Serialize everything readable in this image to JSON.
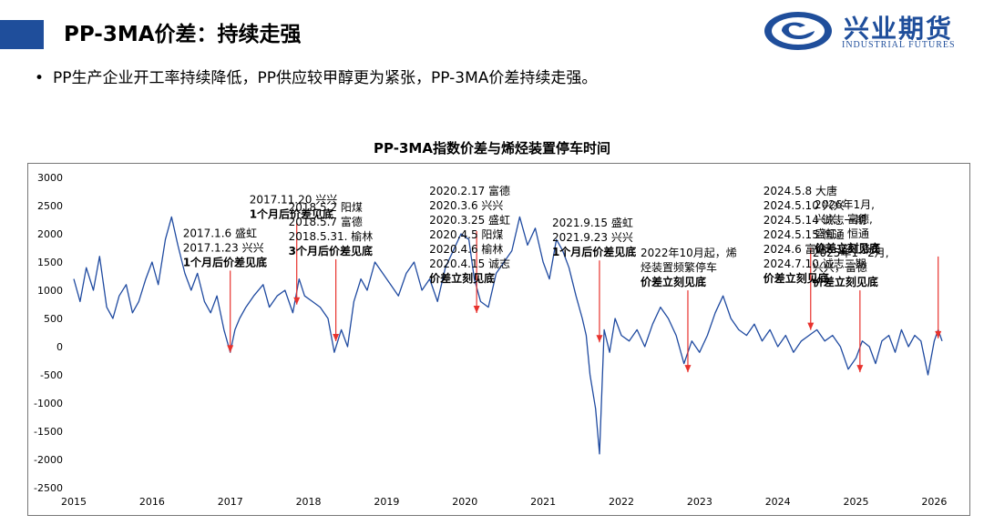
{
  "header": {
    "title": "PP-3MA价差：持续走强"
  },
  "logo": {
    "name_cn": "兴业期货",
    "name_en": "INDUSTRIAL FUTURES"
  },
  "bullet": {
    "text": "PP生产企业开工率持续降低，PP供应较甲醇更为紧张，PP-3MA价差持续走强。"
  },
  "colors": {
    "accent": "#1f4e9b",
    "series": "#1f4aa0",
    "arrow": "#e8322d"
  },
  "chart_data": {
    "type": "line",
    "title": "PP-3MA指数价差与烯烃装置停车时间",
    "xlabel": "",
    "ylabel": "",
    "ylim": [
      -2500,
      3000
    ],
    "xlim": [
      2015,
      2026.1
    ],
    "yticks": [
      3000,
      2500,
      2000,
      1500,
      1000,
      500,
      0,
      -500,
      -1000,
      -1500,
      -2000,
      -2500
    ],
    "xticks": [
      "2015",
      "2016",
      "2017",
      "2018",
      "2019",
      "2020",
      "2021",
      "2022",
      "2023",
      "2024",
      "2025",
      "2026"
    ],
    "grid": false,
    "legend": "none",
    "series": [
      {
        "x": [
          2015.0,
          2015.08,
          2015.16,
          2015.25,
          2015.33,
          2015.42,
          2015.5,
          2015.58,
          2015.67,
          2015.75,
          2015.83,
          2015.92,
          2016.0,
          2016.08,
          2016.17,
          2016.25,
          2016.33,
          2016.42,
          2016.5,
          2016.58,
          2016.67,
          2016.75,
          2016.83,
          2016.92,
          2017.0,
          2017.06,
          2017.12,
          2017.2,
          2017.3,
          2017.42,
          2017.5,
          2017.6,
          2017.7,
          2017.8,
          2017.88,
          2017.95,
          2018.05,
          2018.15,
          2018.25,
          2018.33,
          2018.42,
          2018.5,
          2018.58,
          2018.67,
          2018.75,
          2018.85,
          2018.95,
          2019.05,
          2019.15,
          2019.25,
          2019.35,
          2019.45,
          2019.55,
          2019.65,
          2019.75,
          2019.85,
          2019.95,
          2020.05,
          2020.12,
          2020.2,
          2020.3,
          2020.4,
          2020.5,
          2020.6,
          2020.7,
          2020.8,
          2020.9,
          2021.0,
          2021.08,
          2021.17,
          2021.25,
          2021.33,
          2021.42,
          2021.5,
          2021.55,
          2021.6,
          2021.67,
          2021.72,
          2021.78,
          2021.85,
          2021.92,
          2022.0,
          2022.1,
          2022.2,
          2022.3,
          2022.4,
          2022.5,
          2022.6,
          2022.7,
          2022.8,
          2022.9,
          2023.0,
          2023.1,
          2023.2,
          2023.3,
          2023.4,
          2023.5,
          2023.6,
          2023.7,
          2023.8,
          2023.9,
          2024.0,
          2024.1,
          2024.2,
          2024.3,
          2024.4,
          2024.5,
          2024.6,
          2024.7,
          2024.8,
          2024.9,
          2025.0,
          2025.08,
          2025.17,
          2025.25,
          2025.33,
          2025.42,
          2025.5,
          2025.58,
          2025.67,
          2025.75,
          2025.83,
          2025.92,
          2026.0,
          2026.05,
          2026.1
        ],
        "y": [
          1200,
          800,
          1400,
          1000,
          1600,
          700,
          500,
          900,
          1100,
          600,
          800,
          1200,
          1500,
          1100,
          1900,
          2300,
          1800,
          1300,
          1000,
          1300,
          800,
          600,
          900,
          300,
          -100,
          300,
          500,
          700,
          900,
          1100,
          700,
          900,
          1000,
          600,
          1200,
          900,
          800,
          700,
          500,
          -100,
          300,
          0,
          800,
          1200,
          1000,
          1500,
          1300,
          1100,
          900,
          1300,
          1500,
          1000,
          1200,
          800,
          1400,
          1700,
          2000,
          1900,
          1200,
          800,
          700,
          1300,
          1500,
          1700,
          2300,
          1800,
          2100,
          1500,
          1200,
          1900,
          1700,
          1400,
          900,
          500,
          200,
          -500,
          -1100,
          -1900,
          300,
          -100,
          500,
          200,
          100,
          300,
          0,
          400,
          700,
          500,
          200,
          -300,
          100,
          -100,
          200,
          600,
          900,
          500,
          300,
          200,
          400,
          100,
          300,
          0,
          200,
          -100,
          100,
          200,
          300,
          100,
          200,
          0,
          -400,
          -200,
          100,
          0,
          -300,
          100,
          200,
          -100,
          300,
          0,
          200,
          100,
          -500,
          100,
          300,
          100
        ]
      }
    ],
    "annotations": [
      {
        "x": 2017.0,
        "y": -200,
        "lines": [
          "2017.1.6 盛虹",
          "2017.1.23 兴兴",
          "1个月后价差见底"
        ]
      },
      {
        "x": 2017.85,
        "y": 650,
        "lines": [
          "2017.11.20 兴兴",
          "1个月后价差见底"
        ]
      },
      {
        "x": 2018.35,
        "y": 0,
        "lines": [
          "2018.5.2 阳煤",
          "2018.5.7 富德",
          "2018.5.31. 榆林",
          "3个月后价差见底"
        ]
      },
      {
        "x": 2020.15,
        "y": 500,
        "lines": [
          "2020.2.17 富德",
          "2020.3.6 兴兴",
          "2020.3.25 盛虹",
          "2020.4.5 阳煤",
          "2020.4.6 榆林",
          "2020.4.15 诚志",
          "价差立刻见底"
        ]
      },
      {
        "x": 2021.72,
        "y": -20,
        "lines": [
          "2021.9.15 盛虹",
          "2021.9.23 兴兴",
          "1个月后价差见底"
        ]
      },
      {
        "x": 2022.85,
        "y": -550,
        "lines": [
          "2022年10月起，烯",
          "烃装置频繁停车",
          "价差立刻见底"
        ]
      },
      {
        "x": 2024.42,
        "y": 200,
        "lines": [
          "2024.5.8 大唐",
          "2024.5.10 兴兴",
          "2024.5.14 诚志一期",
          "2024.5.15 恒通",
          "2024.6 富德、盛虹降负",
          "2024.7.10 诚志二期",
          "价差立刻见底"
        ]
      },
      {
        "x": 2025.05,
        "y": -550,
        "lines": [
          "2025年1~2月,",
          "兴兴，富德",
          "价差立刻见底"
        ]
      },
      {
        "x": 2026.05,
        "y": 50,
        "lines": [
          "2026年1月,",
          "兴兴，富德,",
          "盛虹、恒通",
          "价差立刻见底"
        ]
      }
    ]
  }
}
